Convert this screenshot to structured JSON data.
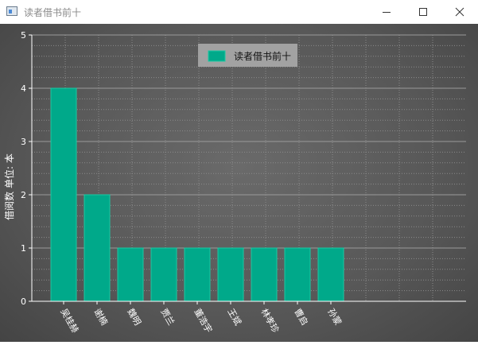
{
  "window": {
    "title": "读者借书前十",
    "min_icon": "minimize-icon",
    "max_icon": "maximize-icon",
    "close_icon": "close-icon"
  },
  "chart_data": {
    "type": "bar",
    "title": "",
    "legend": {
      "label": "读者借书前十",
      "placement": "top-center"
    },
    "categories": [
      "吴桂赫",
      "谢楠",
      "魏明",
      "贾兰",
      "董浩宇",
      "王斌",
      "林孝珍",
      "曹启",
      "孙蒙"
    ],
    "values": [
      4,
      2,
      1,
      1,
      1,
      1,
      1,
      1,
      1
    ],
    "ylabel": "借阅数 单位: 本",
    "xlabel": "",
    "ylim": [
      0,
      5
    ],
    "yticks": [
      "0",
      "1",
      "2",
      "3",
      "4",
      "5"
    ],
    "grid": true,
    "bar_color": "#00a98a"
  }
}
